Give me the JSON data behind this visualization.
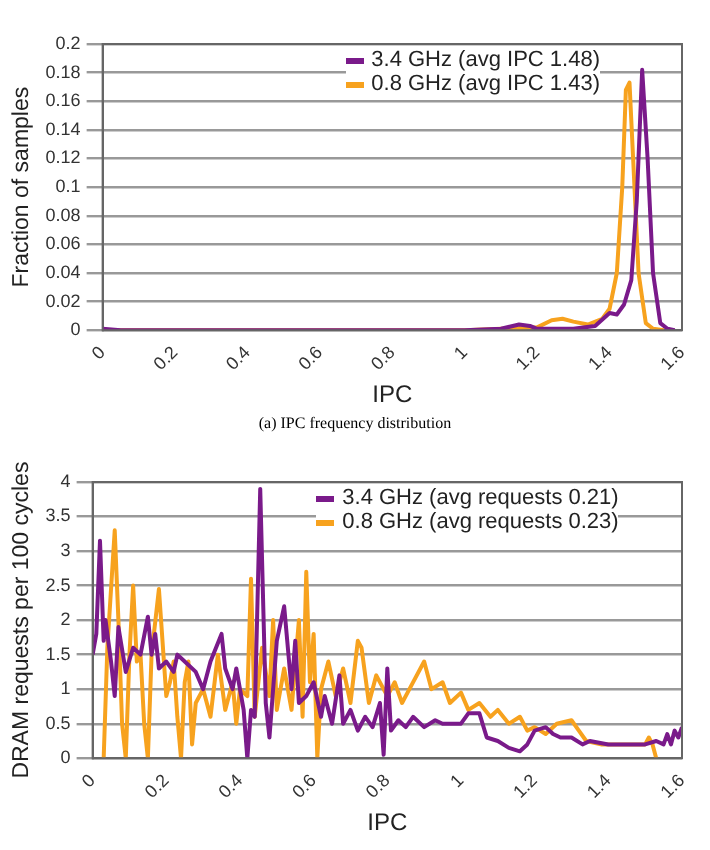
{
  "chart_data": [
    {
      "type": "line",
      "xlabel": "IPC",
      "ylabel": "Fraction of samples",
      "xlim": [
        0,
        1.6
      ],
      "xticks": [
        0,
        0.2,
        0.4,
        0.6,
        0.8,
        1,
        1.2,
        1.4,
        1.6
      ],
      "ylim": [
        0,
        0.2
      ],
      "yticks": [
        0,
        0.02,
        0.04,
        0.06,
        0.08,
        0.1,
        0.12,
        0.14,
        0.16,
        0.18,
        0.2
      ],
      "grid": "y",
      "legend": "top",
      "marker": "none",
      "annotations": [
        "(a) IPC frequency distribution"
      ],
      "series": [
        {
          "name": "3.4 GHz (avg IPC 1.48)",
          "color": "#7a1a8a",
          "x": [
            0,
            0.05,
            1.0,
            1.1,
            1.15,
            1.18,
            1.2,
            1.3,
            1.36,
            1.4,
            1.42,
            1.44,
            1.46,
            1.475,
            1.49,
            1.505,
            1.52,
            1.54,
            1.56,
            1.58
          ],
          "values": [
            0.001,
            0,
            0,
            0.001,
            0.004,
            0.003,
            0.001,
            0.001,
            0.003,
            0.012,
            0.011,
            0.018,
            0.035,
            0.09,
            0.182,
            0.12,
            0.04,
            0.005,
            0.001,
            0
          ]
        },
        {
          "name": "0.8 GHz (avg IPC 1.43)",
          "color": "#f7a21e",
          "x": [
            0,
            1.0,
            1.1,
            1.2,
            1.24,
            1.27,
            1.3,
            1.34,
            1.38,
            1.4,
            1.42,
            1.435,
            1.445,
            1.455,
            1.465,
            1.48,
            1.5,
            1.52,
            1.55
          ],
          "values": [
            0,
            0,
            0.001,
            0.002,
            0.007,
            0.008,
            0.006,
            0.004,
            0.008,
            0.015,
            0.04,
            0.1,
            0.168,
            0.173,
            0.12,
            0.04,
            0.005,
            0.001,
            0
          ]
        }
      ]
    },
    {
      "type": "line",
      "xlabel": "IPC",
      "ylabel": "DRAM requests per 100 cycles",
      "xlim": [
        0,
        1.6
      ],
      "xticks": [
        0,
        0.2,
        0.4,
        0.6,
        0.8,
        1,
        1.2,
        1.4,
        1.6
      ],
      "ylim": [
        0,
        4
      ],
      "yticks": [
        0,
        0.5,
        1,
        1.5,
        2,
        2.5,
        3,
        3.5,
        4
      ],
      "grid": "y",
      "legend": "top",
      "marker": "none",
      "series": [
        {
          "name": "3.4 GHz (avg requests 0.21)",
          "color": "#7a1a8a",
          "x": [
            0,
            0.01,
            0.02,
            0.03,
            0.035,
            0.05,
            0.06,
            0.07,
            0.09,
            0.11,
            0.13,
            0.15,
            0.16,
            0.17,
            0.18,
            0.2,
            0.22,
            0.23,
            0.25,
            0.28,
            0.3,
            0.32,
            0.35,
            0.36,
            0.38,
            0.39,
            0.41,
            0.42,
            0.43,
            0.44,
            0.455,
            0.47,
            0.48,
            0.5,
            0.52,
            0.54,
            0.55,
            0.56,
            0.58,
            0.6,
            0.62,
            0.63,
            0.65,
            0.67,
            0.68,
            0.7,
            0.72,
            0.74,
            0.76,
            0.78,
            0.79,
            0.8,
            0.81,
            0.83,
            0.85,
            0.87,
            0.9,
            0.93,
            0.95,
            0.98,
            1.0,
            1.02,
            1.05,
            1.07,
            1.1,
            1.13,
            1.16,
            1.18,
            1.2,
            1.23,
            1.25,
            1.27,
            1.3,
            1.33,
            1.35,
            1.4,
            1.45,
            1.5,
            1.53,
            1.55,
            1.56,
            1.57,
            1.58,
            1.59,
            1.6
          ],
          "values": [
            1.5,
            1.8,
            3.15,
            1.7,
            2.0,
            1.4,
            0.9,
            1.9,
            1.25,
            1.6,
            1.5,
            2.05,
            1.5,
            1.8,
            1.3,
            1.4,
            1.25,
            1.5,
            1.4,
            1.25,
            1.0,
            1.4,
            1.8,
            1.3,
            1.0,
            1.3,
            0.7,
            0.0,
            0.7,
            0.6,
            3.9,
            0.8,
            0.3,
            1.7,
            2.2,
            1.0,
            1.7,
            0.8,
            0.9,
            1.1,
            0.6,
            0.9,
            0.5,
            1.2,
            0.5,
            0.7,
            0.4,
            0.6,
            0.45,
            0.8,
            0.05,
            1.3,
            0.4,
            0.55,
            0.45,
            0.6,
            0.45,
            0.55,
            0.5,
            0.5,
            0.5,
            0.65,
            0.65,
            0.3,
            0.25,
            0.15,
            0.1,
            0.2,
            0.4,
            0.45,
            0.35,
            0.3,
            0.3,
            0.2,
            0.25,
            0.2,
            0.2,
            0.2,
            0.25,
            0.2,
            0.35,
            0.2,
            0.4,
            0.3,
            0.45
          ]
        },
        {
          "name": "0.8 GHz (avg requests 0.23)",
          "color": "#f7a21e",
          "x": [
            0.03,
            0.04,
            0.06,
            0.07,
            0.08,
            0.09,
            0.1,
            0.11,
            0.12,
            0.13,
            0.14,
            0.15,
            0.16,
            0.18,
            0.2,
            0.21,
            0.22,
            0.23,
            0.24,
            0.25,
            0.26,
            0.27,
            0.28,
            0.3,
            0.32,
            0.34,
            0.36,
            0.38,
            0.39,
            0.4,
            0.42,
            0.43,
            0.44,
            0.46,
            0.48,
            0.49,
            0.5,
            0.52,
            0.54,
            0.56,
            0.57,
            0.58,
            0.59,
            0.6,
            0.61,
            0.62,
            0.64,
            0.66,
            0.68,
            0.7,
            0.72,
            0.73,
            0.75,
            0.77,
            0.8,
            0.82,
            0.84,
            0.86,
            0.9,
            0.92,
            0.95,
            0.97,
            1.0,
            1.02,
            1.05,
            1.08,
            1.1,
            1.13,
            1.16,
            1.18,
            1.2,
            1.23,
            1.26,
            1.3,
            1.32,
            1.34,
            1.38,
            1.45,
            1.5,
            1.51,
            1.52,
            1.53
          ],
          "values": [
            0,
            1.6,
            3.3,
            2.0,
            0.5,
            0.0,
            1.5,
            2.5,
            1.4,
            1.5,
            0.5,
            0.0,
            1.5,
            2.45,
            0.9,
            1.1,
            1.4,
            0.6,
            0.0,
            1.1,
            1.4,
            0.2,
            0.8,
            1.0,
            0.6,
            1.5,
            0.7,
            1.1,
            0.5,
            1.0,
            0.9,
            2.6,
            0.6,
            1.6,
            0.9,
            2.0,
            0.7,
            1.3,
            0.7,
            2.0,
            0.6,
            2.7,
            1.1,
            1.8,
            0.0,
            1.0,
            1.4,
            0.9,
            1.3,
            0.8,
            1.7,
            1.6,
            0.8,
            1.2,
            0.9,
            1.1,
            0.8,
            1.0,
            1.4,
            1.0,
            1.1,
            0.8,
            0.95,
            0.7,
            0.8,
            0.6,
            0.7,
            0.5,
            0.6,
            0.4,
            0.45,
            0.35,
            0.5,
            0.55,
            0.4,
            0.25,
            0.2,
            0.2,
            0.2,
            0.3,
            0.2,
            0.0
          ]
        }
      ]
    }
  ]
}
